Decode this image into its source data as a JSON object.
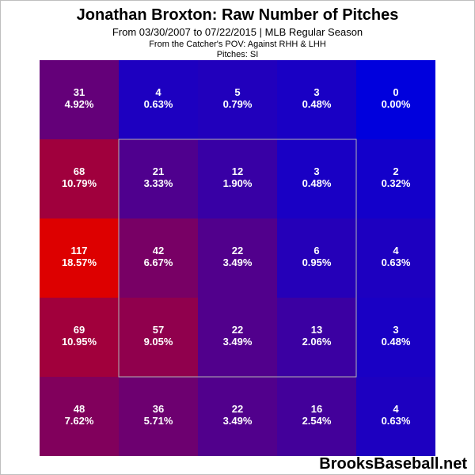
{
  "header": {
    "title": "Jonathan Broxton: Raw Number of Pitches",
    "subtitle": "From 03/30/2007 to 07/22/2015 | MLB Regular Season",
    "pov_text": "From the Catcher's POV:  Against RHH & LHH",
    "pitches_text": "Pitches:  SI"
  },
  "footer": {
    "brand": "BrooksBaseball.net"
  },
  "chart_data": {
    "type": "heatmap",
    "title": "Jonathan Broxton: Raw Number of Pitches",
    "rows": 5,
    "cols": 5,
    "counts": [
      [
        31,
        4,
        5,
        3,
        0
      ],
      [
        68,
        21,
        12,
        3,
        2
      ],
      [
        117,
        42,
        22,
        6,
        4
      ],
      [
        69,
        57,
        22,
        13,
        3
      ],
      [
        48,
        36,
        22,
        16,
        4
      ]
    ],
    "percents": [
      [
        "4.92%",
        "0.63%",
        "0.79%",
        "0.48%",
        "0.00%"
      ],
      [
        "10.79%",
        "3.33%",
        "1.90%",
        "0.48%",
        "0.32%"
      ],
      [
        "18.57%",
        "6.67%",
        "3.49%",
        "0.95%",
        "0.63%"
      ],
      [
        "10.95%",
        "9.05%",
        "3.49%",
        "2.06%",
        "0.48%"
      ],
      [
        "7.62%",
        "5.71%",
        "3.49%",
        "2.54%",
        "0.63%"
      ]
    ],
    "color_low": "#0000dd",
    "color_high": "#dd0000",
    "strike_zone_color": "#b4b4b4",
    "strike_zone_rows": [
      1,
      3
    ],
    "strike_zone_cols": [
      1,
      3
    ]
  }
}
